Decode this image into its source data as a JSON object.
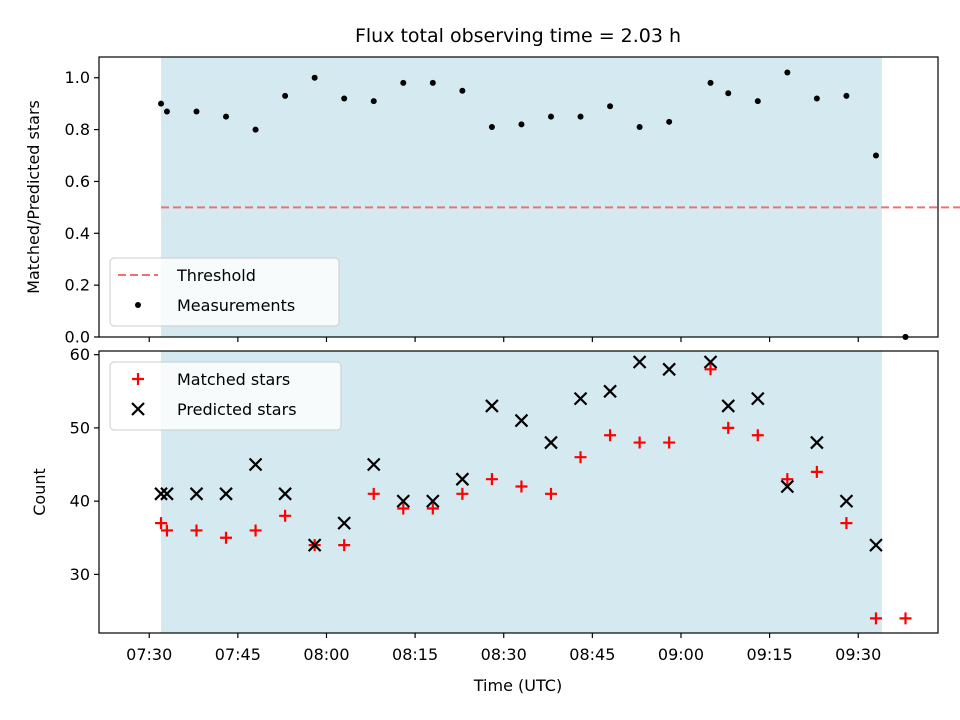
{
  "chart_data": {
    "title": "Flux total observing time = 2.03 h",
    "xlabel": "Time (UTC)",
    "x_tick_labels": [
      "07:30",
      "07:45",
      "08:00",
      "08:15",
      "08:30",
      "08:45",
      "09:00",
      "09:15",
      "09:30"
    ],
    "observing_window": {
      "start": "07:32",
      "end": "09:34",
      "color": "#d4eaf0"
    },
    "panels": [
      {
        "type": "scatter",
        "ylabel": "Matched/Predicted stars",
        "ylim": [
          0,
          1.08
        ],
        "y_ticks": [
          "0.0",
          "0.2",
          "0.4",
          "0.6",
          "0.8",
          "1.0"
        ],
        "legend": {
          "location": "lower-left",
          "entries": [
            "Threshold",
            "Measurements"
          ]
        },
        "threshold": {
          "name": "Threshold",
          "value": 0.5,
          "x_range": [
            "07:32",
            "09:48"
          ],
          "color": "#f07070",
          "style": "dashed"
        },
        "series": [
          {
            "name": "Measurements",
            "marker": "dot",
            "color": "#000000",
            "points": [
              {
                "x": "07:32",
                "y": 0.9
              },
              {
                "x": "07:33",
                "y": 0.87
              },
              {
                "x": "07:38",
                "y": 0.87
              },
              {
                "x": "07:43",
                "y": 0.85
              },
              {
                "x": "07:48",
                "y": 0.8
              },
              {
                "x": "07:53",
                "y": 0.93
              },
              {
                "x": "07:58",
                "y": 1.0
              },
              {
                "x": "08:03",
                "y": 0.92
              },
              {
                "x": "08:08",
                "y": 0.91
              },
              {
                "x": "08:13",
                "y": 0.98
              },
              {
                "x": "08:18",
                "y": 0.98
              },
              {
                "x": "08:23",
                "y": 0.95
              },
              {
                "x": "08:28",
                "y": 0.81
              },
              {
                "x": "08:33",
                "y": 0.82
              },
              {
                "x": "08:38",
                "y": 0.85
              },
              {
                "x": "08:43",
                "y": 0.85
              },
              {
                "x": "08:48",
                "y": 0.89
              },
              {
                "x": "08:53",
                "y": 0.81
              },
              {
                "x": "08:58",
                "y": 0.83
              },
              {
                "x": "09:05",
                "y": 0.98
              },
              {
                "x": "09:08",
                "y": 0.94
              },
              {
                "x": "09:13",
                "y": 0.91
              },
              {
                "x": "09:18",
                "y": 1.02
              },
              {
                "x": "09:23",
                "y": 0.92
              },
              {
                "x": "09:28",
                "y": 0.93
              },
              {
                "x": "09:33",
                "y": 0.7
              },
              {
                "x": "09:38",
                "y": 0.0
              }
            ]
          }
        ]
      },
      {
        "type": "scatter",
        "ylabel": "Count",
        "ylim": [
          22,
          60.5
        ],
        "y_ticks": [
          "30",
          "40",
          "50",
          "60"
        ],
        "legend": {
          "location": "top-left",
          "entries": [
            "Matched stars",
            "Predicted stars"
          ]
        },
        "series": [
          {
            "name": "Matched stars",
            "marker": "plus",
            "color": "#ff0000",
            "points": [
              {
                "x": "07:32",
                "y": 37
              },
              {
                "x": "07:33",
                "y": 36
              },
              {
                "x": "07:38",
                "y": 36
              },
              {
                "x": "07:43",
                "y": 35
              },
              {
                "x": "07:48",
                "y": 36
              },
              {
                "x": "07:53",
                "y": 38
              },
              {
                "x": "07:58",
                "y": 34
              },
              {
                "x": "08:03",
                "y": 34
              },
              {
                "x": "08:08",
                "y": 41
              },
              {
                "x": "08:13",
                "y": 39
              },
              {
                "x": "08:18",
                "y": 39
              },
              {
                "x": "08:23",
                "y": 41
              },
              {
                "x": "08:28",
                "y": 43
              },
              {
                "x": "08:33",
                "y": 42
              },
              {
                "x": "08:38",
                "y": 41
              },
              {
                "x": "08:43",
                "y": 46
              },
              {
                "x": "08:48",
                "y": 49
              },
              {
                "x": "08:53",
                "y": 48
              },
              {
                "x": "08:58",
                "y": 48
              },
              {
                "x": "09:05",
                "y": 58
              },
              {
                "x": "09:08",
                "y": 50
              },
              {
                "x": "09:13",
                "y": 49
              },
              {
                "x": "09:18",
                "y": 43
              },
              {
                "x": "09:23",
                "y": 44
              },
              {
                "x": "09:28",
                "y": 37
              },
              {
                "x": "09:33",
                "y": 24
              },
              {
                "x": "09:38",
                "y": 24
              }
            ]
          },
          {
            "name": "Predicted stars",
            "marker": "x",
            "color": "#000000",
            "points": [
              {
                "x": "07:32",
                "y": 41
              },
              {
                "x": "07:33",
                "y": 41
              },
              {
                "x": "07:38",
                "y": 41
              },
              {
                "x": "07:43",
                "y": 41
              },
              {
                "x": "07:48",
                "y": 45
              },
              {
                "x": "07:53",
                "y": 41
              },
              {
                "x": "07:58",
                "y": 34
              },
              {
                "x": "08:03",
                "y": 37
              },
              {
                "x": "08:08",
                "y": 45
              },
              {
                "x": "08:13",
                "y": 40
              },
              {
                "x": "08:18",
                "y": 40
              },
              {
                "x": "08:23",
                "y": 43
              },
              {
                "x": "08:28",
                "y": 53
              },
              {
                "x": "08:33",
                "y": 51
              },
              {
                "x": "08:38",
                "y": 48
              },
              {
                "x": "08:43",
                "y": 54
              },
              {
                "x": "08:48",
                "y": 55
              },
              {
                "x": "08:53",
                "y": 59
              },
              {
                "x": "08:58",
                "y": 58
              },
              {
                "x": "09:05",
                "y": 59
              },
              {
                "x": "09:08",
                "y": 53
              },
              {
                "x": "09:13",
                "y": 54
              },
              {
                "x": "09:18",
                "y": 42
              },
              {
                "x": "09:23",
                "y": 48
              },
              {
                "x": "09:28",
                "y": 40
              },
              {
                "x": "09:33",
                "y": 34
              }
            ]
          }
        ]
      }
    ]
  }
}
